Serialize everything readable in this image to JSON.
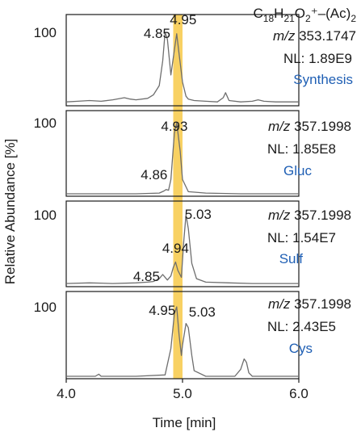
{
  "chart_data": {
    "type": "line",
    "xlabel": "Time [min]",
    "ylabel": "Relative Abundance [%]",
    "xlim": [
      4.0,
      6.0
    ],
    "xticks": [
      "4.0",
      "5.0",
      "6.0"
    ],
    "highlight_band": {
      "x_range": [
        4.92,
        5.0
      ],
      "color": "#f7c948"
    },
    "sample_color": "#1f5fb4",
    "trace_color": "#6e6e6e",
    "panels": [
      {
        "ytick_label": "100",
        "formula_main": "C",
        "formula_sub1": "18",
        "formula_h": "H",
        "formula_sub2": "21",
        "formula_o": "O",
        "formula_sub3": "2",
        "formula_tail": "⁺–(Ac)",
        "formula_sub4": "2",
        "mz_prefix": "m/z",
        "mz_value": "353.1747",
        "nl": "NL: 1.89E9",
        "sample": "Synthesis",
        "peak_labels": [
          {
            "t": 4.85,
            "text": "4.85"
          },
          {
            "t": 4.95,
            "text": "4.95"
          }
        ],
        "series": {
          "name": "",
          "x": [
            4.0,
            4.1,
            4.2,
            4.3,
            4.4,
            4.5,
            4.55,
            4.6,
            4.7,
            4.75,
            4.8,
            4.83,
            4.85,
            4.87,
            4.9,
            4.93,
            4.95,
            4.97,
            5.0,
            5.03,
            5.05,
            5.1,
            5.2,
            5.3,
            5.35,
            5.37,
            5.4,
            5.5,
            5.6,
            5.65,
            5.7,
            5.8,
            5.9,
            6.0
          ],
          "y": [
            2,
            3,
            4,
            3,
            5,
            8,
            6,
            5,
            7,
            12,
            25,
            60,
            100,
            90,
            40,
            75,
            98,
            70,
            30,
            10,
            6,
            4,
            3,
            2,
            8,
            15,
            4,
            2,
            3,
            5,
            3,
            2,
            2,
            2
          ]
        }
      },
      {
        "ytick_label": "100",
        "mz_prefix": "m/z",
        "mz_value": "357.1998",
        "nl": "NL: 1.85E8",
        "sample": "Gluc",
        "peak_labels": [
          {
            "t": 4.93,
            "text": "4.93"
          },
          {
            "t": 4.86,
            "text": "4.86"
          }
        ],
        "series": {
          "name": "",
          "x": [
            4.0,
            4.3,
            4.6,
            4.8,
            4.84,
            4.86,
            4.88,
            4.9,
            4.93,
            4.95,
            4.98,
            5.0,
            5.05,
            5.2,
            5.5,
            6.0
          ],
          "y": [
            0,
            0,
            0,
            1,
            4,
            6,
            5,
            20,
            85,
            100,
            60,
            20,
            3,
            1,
            0,
            0
          ]
        }
      },
      {
        "ytick_label": "100",
        "mz_prefix": "m/z",
        "mz_value": "357.1998",
        "nl": "NL: 1.54E7",
        "sample": "Sulf",
        "peak_labels": [
          {
            "t": 4.94,
            "text": "4.94"
          },
          {
            "t": 4.85,
            "text": "4.85"
          },
          {
            "t": 5.03,
            "text": "5.03"
          }
        ],
        "series": {
          "name": "",
          "x": [
            4.0,
            4.2,
            4.4,
            4.6,
            4.7,
            4.75,
            4.8,
            4.83,
            4.85,
            4.87,
            4.9,
            4.92,
            4.94,
            4.96,
            4.99,
            5.01,
            5.03,
            5.05,
            5.08,
            5.12,
            5.2,
            5.4,
            5.6,
            6.0
          ],
          "y": [
            1,
            2,
            1,
            2,
            3,
            4,
            8,
            14,
            10,
            6,
            12,
            24,
            32,
            20,
            10,
            60,
            100,
            80,
            30,
            8,
            3,
            2,
            1,
            1
          ]
        }
      },
      {
        "ytick_label": "100",
        "mz_prefix": "m/z",
        "mz_value": "357.1998",
        "nl": "NL: 2.43E5",
        "sample": "Cys",
        "peak_labels": [
          {
            "t": 4.95,
            "text": "4.95"
          },
          {
            "t": 5.03,
            "text": "5.03"
          }
        ],
        "series": {
          "name": "",
          "x": [
            4.0,
            4.25,
            4.28,
            4.3,
            4.6,
            4.85,
            4.9,
            4.93,
            4.95,
            4.97,
            4.99,
            5.0,
            5.03,
            5.05,
            5.08,
            5.1,
            5.2,
            5.45,
            5.5,
            5.53,
            5.55,
            5.57,
            5.6,
            5.8,
            6.0
          ],
          "y": [
            0,
            0,
            3,
            0,
            0,
            2,
            40,
            90,
            100,
            60,
            30,
            45,
            76,
            70,
            30,
            8,
            0,
            0,
            10,
            25,
            20,
            5,
            0,
            0,
            0
          ]
        }
      }
    ]
  }
}
